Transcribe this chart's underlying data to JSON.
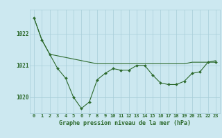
{
  "smooth_y": [
    1022.5,
    1021.8,
    1021.35,
    1021.3,
    1021.25,
    1021.2,
    1021.15,
    1021.1,
    1021.05,
    1021.05,
    1021.05,
    1021.05,
    1021.05,
    1021.05,
    1021.05,
    1021.05,
    1021.05,
    1021.05,
    1021.05,
    1021.05,
    1021.1,
    1021.1,
    1021.1,
    1021.15
  ],
  "main_y": [
    1022.5,
    1021.8,
    1021.35,
    1020.9,
    1020.6,
    1020.0,
    1019.65,
    1019.85,
    1020.55,
    1020.75,
    1020.9,
    1020.85,
    1020.85,
    1021.0,
    1021.0,
    1020.7,
    1020.45,
    1020.4,
    1020.4,
    1020.5,
    1020.75,
    1020.8,
    1021.1,
    1021.1
  ],
  "hours": [
    0,
    1,
    2,
    3,
    4,
    5,
    6,
    7,
    8,
    9,
    10,
    11,
    12,
    13,
    14,
    15,
    16,
    17,
    18,
    19,
    20,
    21,
    22,
    23
  ],
  "line_color": "#2d6a2d",
  "bg_color": "#cce8f0",
  "grid_color": "#a8cdd8",
  "xlabel": "Graphe pression niveau de la mer (hPa)",
  "ylim_min": 1019.5,
  "ylim_max": 1022.75,
  "yticks": [
    1020,
    1021,
    1022
  ],
  "title_fontsize": 6.0,
  "tick_fontsize": 5.0,
  "line_width": 0.8,
  "marker_size": 2.0
}
